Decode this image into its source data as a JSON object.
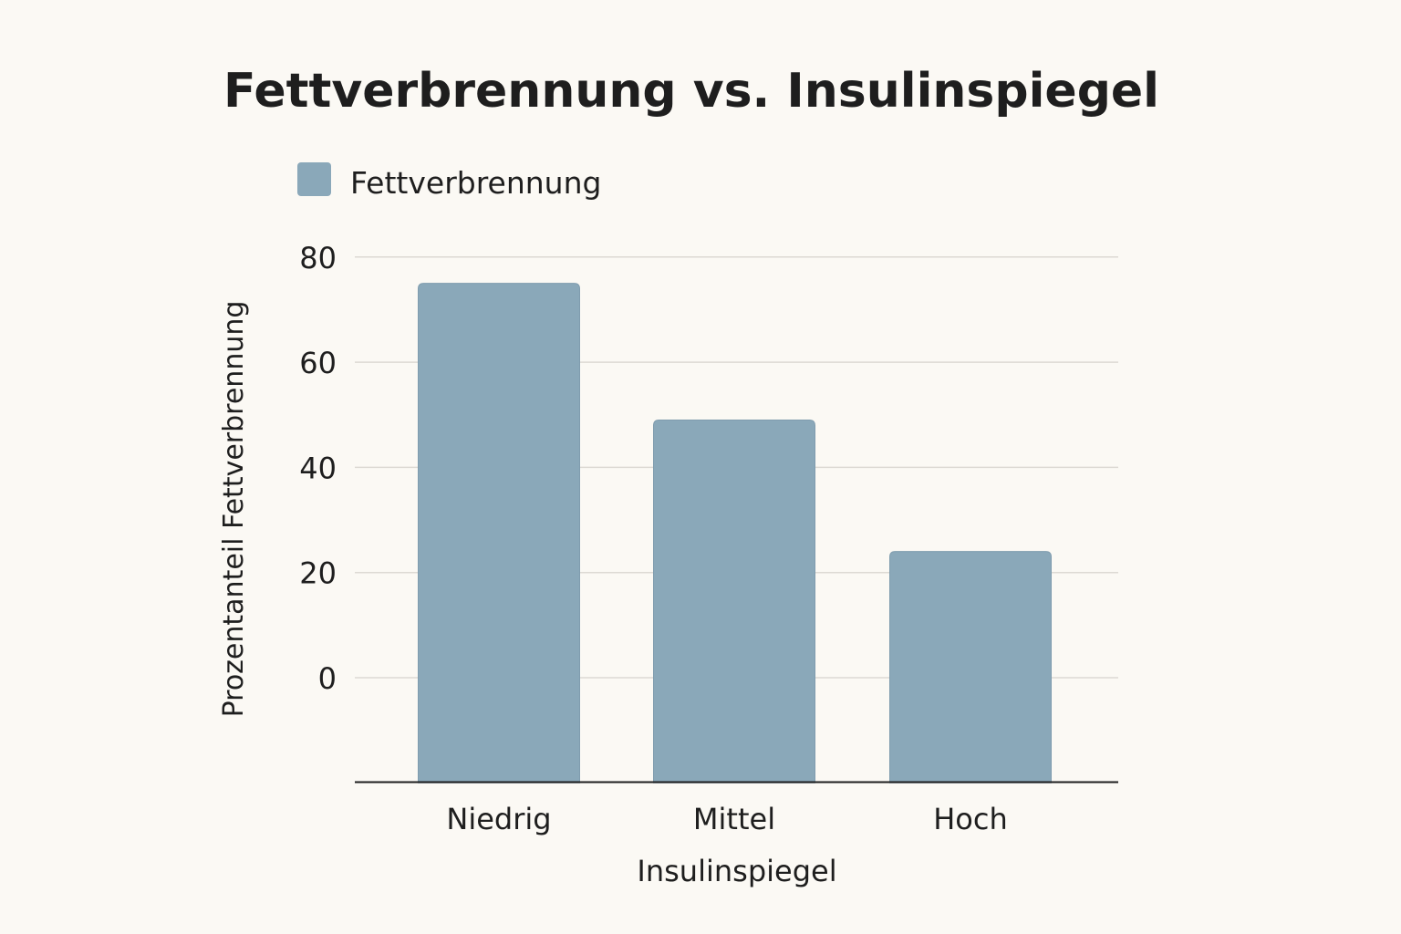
{
  "chart_data": {
    "type": "bar",
    "title": "Fettverbrennung vs. Insulinspiegel",
    "categories": [
      "Niedrig",
      "Mittel",
      "Hoch"
    ],
    "series": [
      {
        "name": "Fettverbrennung",
        "values": [
          75,
          49,
          24
        ],
        "color": "#8aa8b9"
      }
    ],
    "xlabel": "Insulinspiegel",
    "ylabel": "Prozentanteil Fettverbrennung",
    "yticks": [
      0,
      20,
      40,
      60,
      80
    ],
    "ylim": [
      -20,
      80
    ],
    "grid": true,
    "legend_position": "top-left"
  }
}
